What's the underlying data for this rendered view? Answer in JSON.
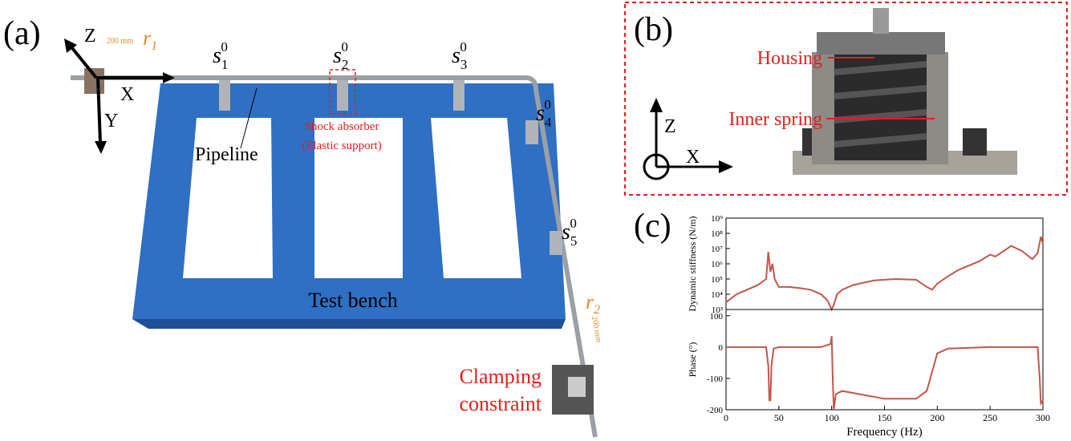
{
  "panel_a": {
    "label": "(a)",
    "axes": {
      "z": "Z",
      "x": "X",
      "y": "Y"
    },
    "start": {
      "r": "r",
      "sub": "1",
      "dist": "200 mm"
    },
    "end": {
      "r": "r",
      "sub": "2",
      "dist": "200 mm"
    },
    "sensors": [
      {
        "s": "s",
        "sub": "1",
        "sup": "0"
      },
      {
        "s": "s",
        "sub": "2",
        "sup": "0"
      },
      {
        "s": "s",
        "sub": "3",
        "sup": "0"
      },
      {
        "s": "s",
        "sub": "4",
        "sup": "0"
      },
      {
        "s": "s",
        "sub": "5",
        "sup": "0"
      }
    ],
    "shock_absorber": [
      "Shock absorber",
      "(Elastic support)"
    ],
    "pipeline": "Pipeline",
    "test_bench": "Test bench",
    "clamping": [
      "Clamping",
      "constraint"
    ]
  },
  "panel_b": {
    "label": "(b)",
    "housing": "Housing",
    "inner_spring": "Inner spring",
    "axes": {
      "z": "Z",
      "x": "X"
    }
  },
  "panel_c": {
    "label": "(c)"
  },
  "chart_data": [
    {
      "type": "line",
      "ylabel": "Dynamic stiffness (N/m)",
      "yscale": "log",
      "xlim": [
        0,
        300
      ],
      "ylim": [
        1000,
        1000000000
      ],
      "yticks": [
        {
          "value": 1000,
          "label": "10³"
        },
        {
          "value": 10000,
          "label": "10⁴"
        },
        {
          "value": 100000,
          "label": "10⁵"
        },
        {
          "value": 1000000,
          "label": "10⁶"
        },
        {
          "value": 10000000,
          "label": "10⁷"
        },
        {
          "value": 100000000,
          "label": "10⁸"
        },
        {
          "value": 1000000000,
          "label": "10⁹"
        }
      ],
      "x": [
        0,
        10,
        20,
        30,
        38,
        40,
        42,
        44,
        46,
        50,
        60,
        70,
        80,
        90,
        96,
        100,
        102,
        105,
        110,
        120,
        140,
        160,
        180,
        190,
        195,
        200,
        210,
        220,
        240,
        250,
        255,
        270,
        280,
        290,
        295,
        298,
        300
      ],
      "series": [
        {
          "color": "#c0574a",
          "values": [
            3000,
            10000,
            20000,
            40000,
            100000,
            6000000,
            300000,
            1000000,
            100000,
            30000,
            30000,
            25000,
            20000,
            10000,
            4000,
            1000,
            2000,
            10000,
            20000,
            40000,
            80000,
            100000,
            90000,
            30000,
            20000,
            50000,
            150000,
            400000,
            1500000,
            4000000,
            3000000,
            15000000,
            7000000,
            2000000,
            5000000,
            60000000,
            20000000
          ]
        }
      ]
    },
    {
      "type": "line",
      "ylabel": "Phase (°)",
      "xlabel": "Frequency (Hz)",
      "xlim": [
        0,
        300
      ],
      "ylim": [
        -200,
        120
      ],
      "yticks": [
        -200,
        -100,
        0,
        100
      ],
      "xticks": [
        0,
        50,
        100,
        150,
        200,
        250,
        300
      ],
      "x": [
        0,
        38,
        40,
        41,
        42,
        43,
        45,
        50,
        90,
        99,
        100,
        101,
        102,
        104,
        110,
        150,
        180,
        190,
        195,
        200,
        210,
        250,
        295,
        297,
        298,
        300
      ],
      "series": [
        {
          "color": "#c0574a",
          "values": [
            0,
            0,
            -60,
            -170,
            -170,
            -60,
            -5,
            0,
            0,
            10,
            35,
            -100,
            -200,
            -150,
            -140,
            -165,
            -165,
            -140,
            -80,
            -20,
            -5,
            0,
            0,
            -100,
            -180,
            -170
          ]
        }
      ]
    }
  ]
}
